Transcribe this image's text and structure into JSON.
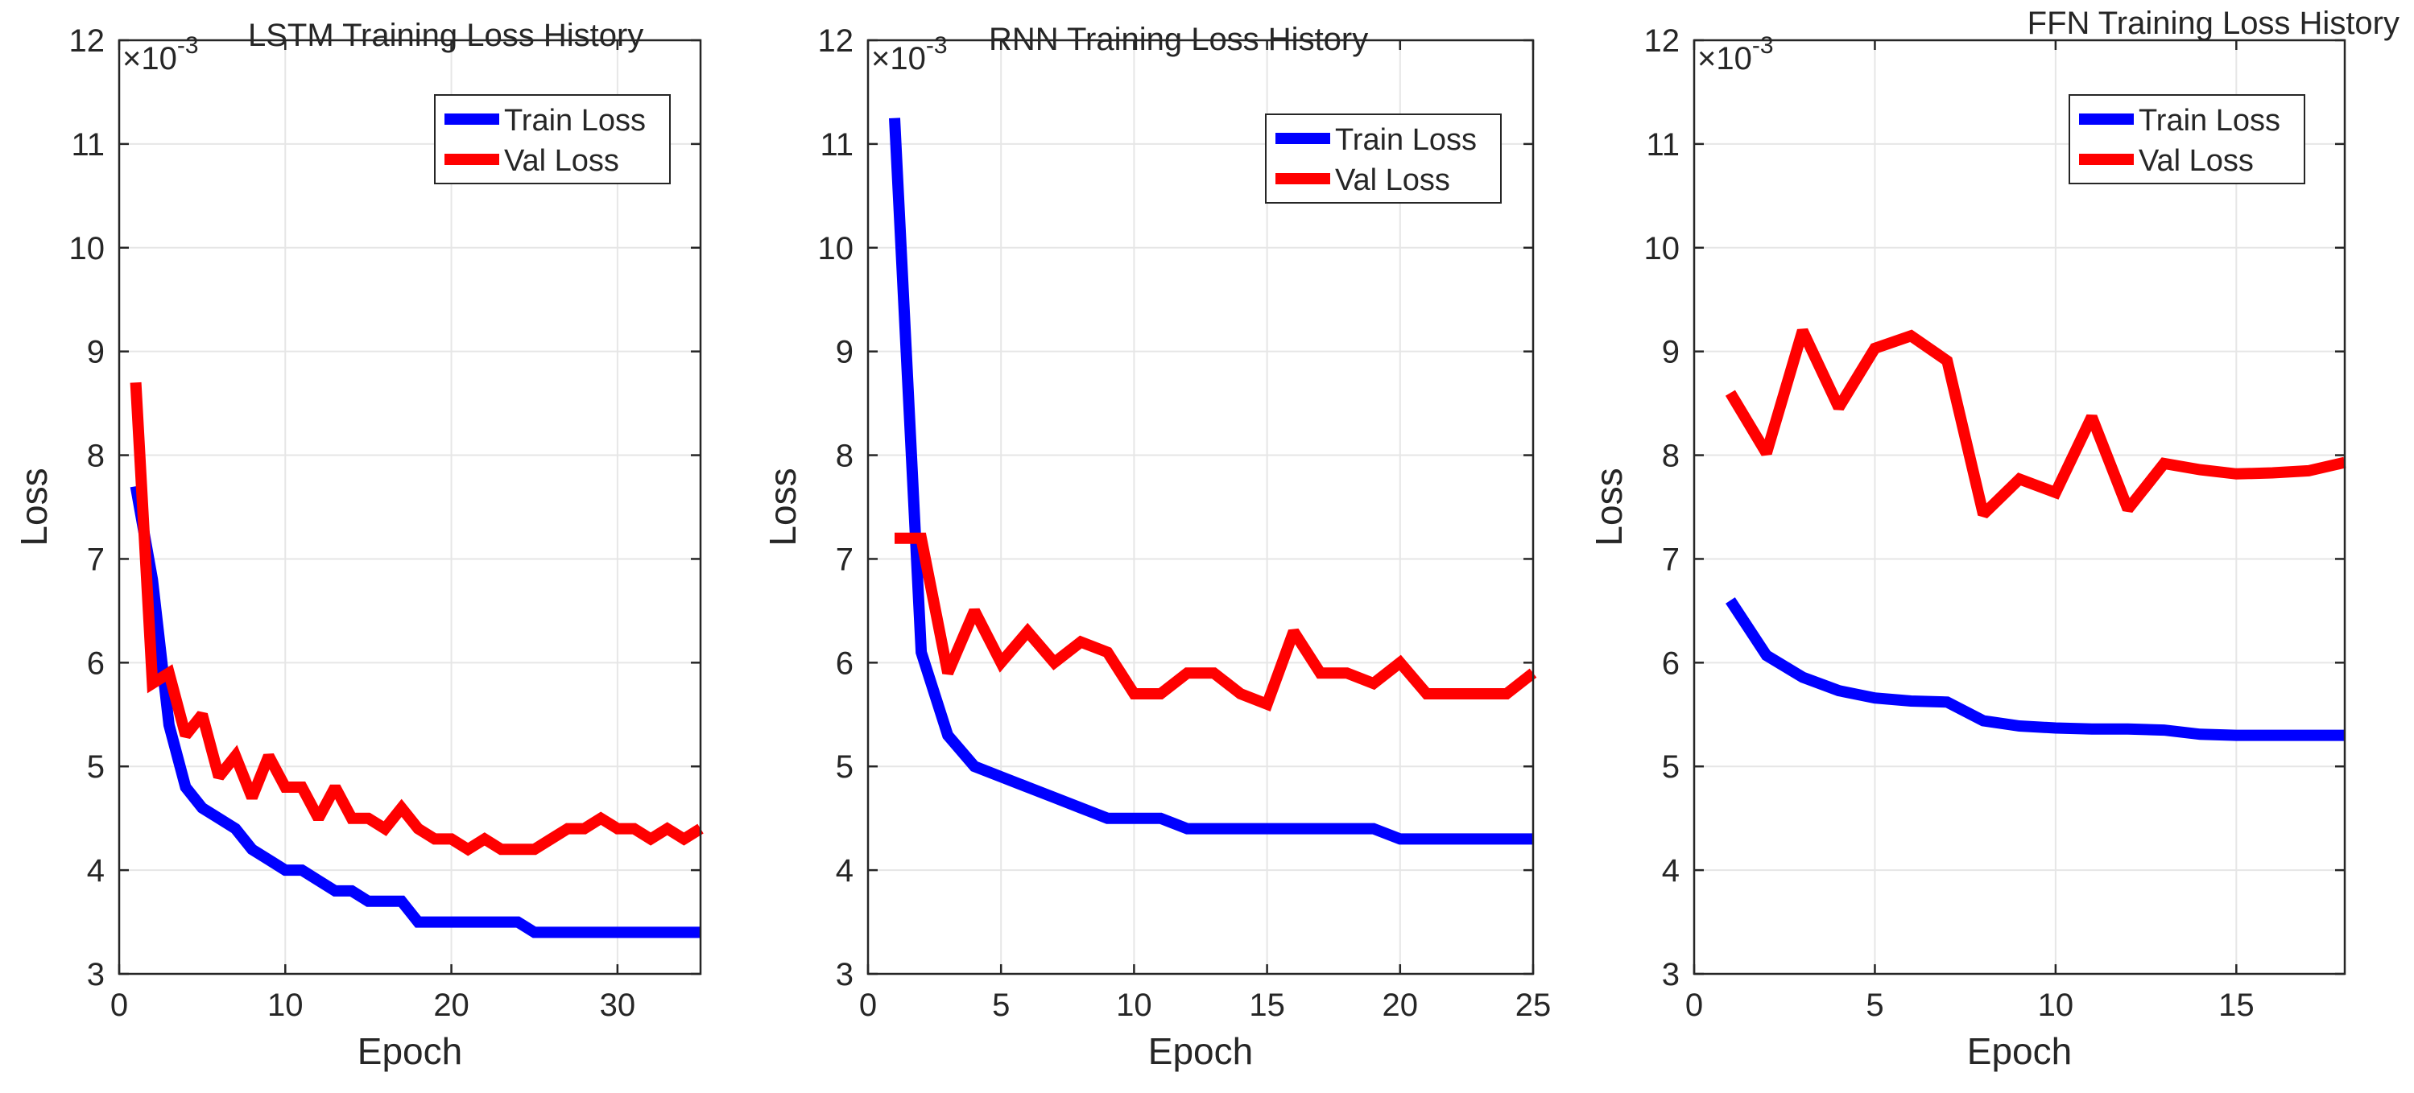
{
  "figure": {
    "colors": {
      "train": "#0000ff",
      "val": "#ff0000",
      "axis": "#262626",
      "grid": "#e6e6e6",
      "background": "#ffffff"
    },
    "exponent": {
      "base": "×10",
      "power": "-3"
    }
  },
  "chart_data": [
    {
      "type": "line",
      "title": "LSTM Training Loss History",
      "xlabel": "Epoch",
      "ylabel": "Loss",
      "xlim": [
        0,
        35
      ],
      "ylim": [
        3,
        12
      ],
      "xticks": [
        0,
        10,
        20,
        30
      ],
      "yticks": [
        3,
        4,
        5,
        6,
        7,
        8,
        9,
        10,
        11,
        12
      ],
      "y_scale_exponent": -3,
      "legend_position": "top-right",
      "series": [
        {
          "name": "Train Loss",
          "color": "#0000ff",
          "x": [
            1,
            2,
            3,
            4,
            5,
            6,
            7,
            8,
            9,
            10,
            11,
            12,
            13,
            14,
            15,
            16,
            17,
            18,
            19,
            20,
            21,
            22,
            23,
            24,
            25,
            26,
            27,
            28,
            29,
            30,
            31,
            32,
            33,
            34,
            35
          ],
          "y": [
            7.7,
            6.8,
            5.4,
            4.8,
            4.6,
            4.5,
            4.4,
            4.2,
            4.1,
            4.0,
            4.0,
            3.9,
            3.8,
            3.8,
            3.7,
            3.7,
            3.7,
            3.5,
            3.5,
            3.5,
            3.5,
            3.5,
            3.5,
            3.5,
            3.4,
            3.4,
            3.4,
            3.4,
            3.4,
            3.4,
            3.4,
            3.4,
            3.4,
            3.4,
            3.4
          ]
        },
        {
          "name": "Val Loss",
          "color": "#ff0000",
          "x": [
            1,
            2,
            3,
            4,
            5,
            6,
            7,
            8,
            9,
            10,
            11,
            12,
            13,
            14,
            15,
            16,
            17,
            18,
            19,
            20,
            21,
            22,
            23,
            24,
            25,
            26,
            27,
            28,
            29,
            30,
            31,
            32,
            33,
            34,
            35
          ],
          "y": [
            8.7,
            5.8,
            5.9,
            5.3,
            5.5,
            4.9,
            5.1,
            4.7,
            5.1,
            4.8,
            4.8,
            4.5,
            4.8,
            4.5,
            4.5,
            4.4,
            4.6,
            4.4,
            4.3,
            4.3,
            4.2,
            4.3,
            4.2,
            4.2,
            4.2,
            4.3,
            4.4,
            4.4,
            4.5,
            4.4,
            4.4,
            4.3,
            4.4,
            4.3,
            4.4
          ]
        }
      ]
    },
    {
      "type": "line",
      "title": "RNN Training Loss History",
      "xlabel": "Epoch",
      "ylabel": "Loss",
      "xlim": [
        0,
        25
      ],
      "ylim": [
        3,
        12
      ],
      "xticks": [
        0,
        5,
        10,
        15,
        20,
        25
      ],
      "yticks": [
        3,
        4,
        5,
        6,
        7,
        8,
        9,
        10,
        11,
        12
      ],
      "y_scale_exponent": -3,
      "legend_position": "top-right",
      "series": [
        {
          "name": "Train Loss",
          "color": "#0000ff",
          "x": [
            1,
            2,
            3,
            4,
            5,
            6,
            7,
            8,
            9,
            10,
            11,
            12,
            13,
            14,
            15,
            16,
            17,
            18,
            19,
            20,
            21,
            22,
            23,
            24,
            25
          ],
          "y": [
            11.25,
            6.1,
            5.3,
            5.0,
            4.9,
            4.8,
            4.7,
            4.6,
            4.5,
            4.5,
            4.5,
            4.4,
            4.4,
            4.4,
            4.4,
            4.4,
            4.4,
            4.4,
            4.4,
            4.3,
            4.3,
            4.3,
            4.3,
            4.3,
            4.3
          ]
        },
        {
          "name": "Val Loss",
          "color": "#ff0000",
          "x": [
            1,
            2,
            3,
            4,
            5,
            6,
            7,
            8,
            9,
            10,
            11,
            12,
            13,
            14,
            15,
            16,
            17,
            18,
            19,
            20,
            21,
            22,
            23,
            24,
            25
          ],
          "y": [
            7.2,
            7.2,
            5.9,
            6.5,
            6.0,
            6.3,
            6.0,
            6.2,
            6.1,
            5.7,
            5.7,
            5.9,
            5.9,
            5.7,
            5.6,
            6.3,
            5.9,
            5.9,
            5.8,
            6.0,
            5.7,
            5.7,
            5.7,
            5.7,
            5.9
          ]
        }
      ]
    },
    {
      "type": "line",
      "title": "FFN Training Loss History",
      "xlabel": "Epoch",
      "ylabel": "Loss",
      "xlim": [
        0,
        18
      ],
      "ylim": [
        3,
        12
      ],
      "xticks": [
        0,
        5,
        10,
        15
      ],
      "yticks": [
        3,
        4,
        5,
        6,
        7,
        8,
        9,
        10,
        11,
        12
      ],
      "y_scale_exponent": -3,
      "legend_position": "top-right",
      "series": [
        {
          "name": "Train Loss",
          "color": "#0000ff",
          "x": [
            1,
            2,
            3,
            4,
            5,
            6,
            7,
            8,
            9,
            10,
            11,
            12,
            13,
            14,
            15,
            16,
            17,
            18
          ],
          "y": [
            6.6,
            6.07,
            5.86,
            5.73,
            5.66,
            5.63,
            5.62,
            5.44,
            5.39,
            5.37,
            5.36,
            5.36,
            5.35,
            5.31,
            5.3,
            5.3,
            5.3,
            5.3
          ]
        },
        {
          "name": "Val Loss",
          "color": "#ff0000",
          "x": [
            1,
            2,
            3,
            4,
            5,
            6,
            7,
            8,
            9,
            10,
            11,
            12,
            13,
            14,
            15,
            16,
            17,
            18
          ],
          "y": [
            8.6,
            8.02,
            9.2,
            8.46,
            9.03,
            9.15,
            8.91,
            7.43,
            7.77,
            7.64,
            8.37,
            7.48,
            7.92,
            7.86,
            7.82,
            7.83,
            7.85,
            7.93
          ]
        }
      ]
    }
  ]
}
